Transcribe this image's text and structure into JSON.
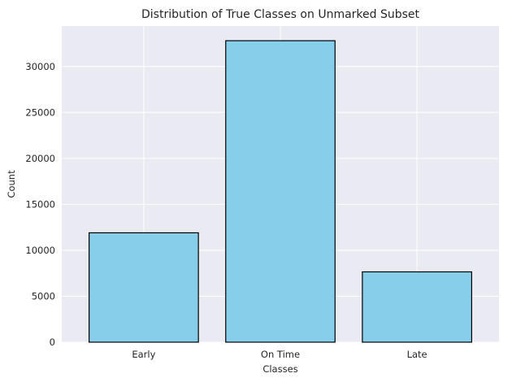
{
  "chart_data": {
    "type": "bar",
    "title": "Distribution of True Classes on Unmarked Subset",
    "xlabel": "Classes",
    "ylabel": "Count",
    "categories": [
      "Early",
      "On Time",
      "Late"
    ],
    "values": [
      11900,
      32800,
      7650
    ],
    "ylim": [
      0,
      34400
    ],
    "yticks": [
      0,
      5000,
      10000,
      15000,
      20000,
      25000,
      30000
    ],
    "grid": true,
    "bar_color": "#87ceeb",
    "bar_edge_color": "#000000",
    "background_color": "#eaeaf2"
  }
}
